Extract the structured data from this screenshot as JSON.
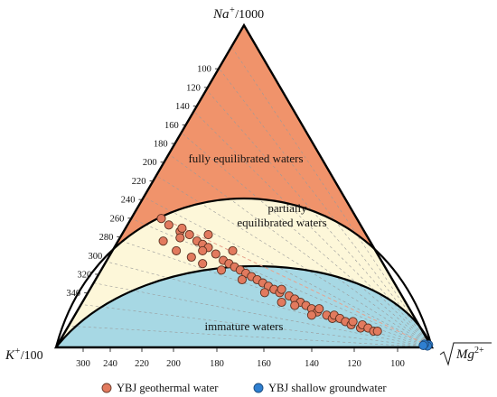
{
  "chart_data": {
    "type": "scatter",
    "subtype": "ternary (Giggenbach Na-K-Mg)",
    "apex_labels": {
      "top": {
        "sym": "Na",
        "sup": "+",
        "den": "/1000"
      },
      "left": {
        "sym": "K",
        "sup": "+",
        "den": "/100"
      },
      "right": {
        "sym": "Mg",
        "sup": "2+",
        "root": "√"
      }
    },
    "na_axis_ticks": [
      "100",
      "120",
      "140",
      "160",
      "180",
      "200",
      "220",
      "240",
      "260",
      "280",
      "300",
      "320",
      "340"
    ],
    "bottom_axis_ticks": [
      "300",
      "240",
      "220",
      "200",
      "180",
      "160",
      "140",
      "120",
      "100"
    ],
    "regions": [
      {
        "name": "fully equilibrated waters",
        "color": "#f0936b"
      },
      {
        "name": "partially equilibrated waters",
        "color": "#fdf7d9"
      },
      {
        "name": "immature waters",
        "color": "#a7d8e4"
      }
    ],
    "region_labels": {
      "full": "fully equilibrated waters",
      "partial_1": "partially",
      "partial_2": "equilibrated waters",
      "immature": "immature waters"
    },
    "series": [
      {
        "name": "YBJ geothermal water",
        "color": "#e27a5e",
        "points": [
          [
            0.52,
            0.4
          ],
          [
            0.51,
            0.38
          ],
          [
            0.49,
            0.36
          ],
          [
            0.5,
            0.34
          ],
          [
            0.48,
            0.37
          ],
          [
            0.47,
            0.35
          ],
          [
            0.46,
            0.33
          ],
          [
            0.45,
            0.32
          ],
          [
            0.44,
            0.31
          ],
          [
            0.46,
            0.3
          ],
          [
            0.43,
            0.29
          ],
          [
            0.42,
            0.27
          ],
          [
            0.41,
            0.26
          ],
          [
            0.4,
            0.25
          ],
          [
            0.39,
            0.24
          ],
          [
            0.38,
            0.23
          ],
          [
            0.37,
            0.22
          ],
          [
            0.36,
            0.21
          ],
          [
            0.35,
            0.2
          ],
          [
            0.34,
            0.19
          ],
          [
            0.33,
            0.18
          ],
          [
            0.32,
            0.17
          ],
          [
            0.31,
            0.18
          ],
          [
            0.3,
            0.16
          ],
          [
            0.29,
            0.15
          ],
          [
            0.28,
            0.14
          ],
          [
            0.27,
            0.13
          ],
          [
            0.26,
            0.12
          ],
          [
            0.25,
            0.11
          ],
          [
            0.24,
            0.12
          ],
          [
            0.23,
            0.1
          ],
          [
            0.22,
            0.09
          ],
          [
            0.21,
            0.1
          ],
          [
            0.2,
            0.09
          ],
          [
            0.19,
            0.08
          ],
          [
            0.18,
            0.07
          ],
          [
            0.17,
            0.08
          ],
          [
            0.16,
            0.06
          ],
          [
            0.15,
            0.07
          ],
          [
            0.14,
            0.06
          ],
          [
            0.13,
            0.05
          ],
          [
            0.12,
            0.05
          ],
          [
            0.5,
            0.28
          ],
          [
            0.48,
            0.26
          ],
          [
            0.44,
            0.24
          ],
          [
            0.4,
            0.21
          ],
          [
            0.36,
            0.17
          ],
          [
            0.33,
            0.14
          ],
          [
            0.3,
            0.13
          ],
          [
            0.27,
            0.1
          ],
          [
            0.55,
            0.33
          ],
          [
            0.53,
            0.3
          ],
          [
            0.42,
            0.35
          ],
          [
            0.38,
            0.3
          ]
        ]
      },
      {
        "name": "YBJ shallow groundwater",
        "color": "#2f7fd0",
        "points": [
          [
            0.005,
            0.008
          ],
          [
            0.01,
            0.004
          ],
          [
            0.015,
            0.01
          ],
          [
            0.02,
            0.006
          ]
        ]
      }
    ],
    "legend": [
      "YBJ geothermal water",
      "YBJ shallow groundwater"
    ],
    "legend_position": "bottom"
  }
}
